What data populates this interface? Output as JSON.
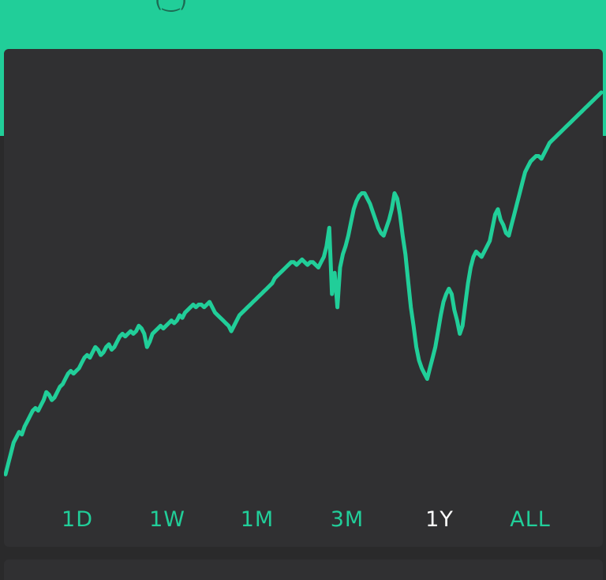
{
  "header": {
    "glyph": "(‿)"
  },
  "colors": {
    "accent": "#21ce99",
    "card": "#303032",
    "background": "#2a2a2b",
    "active_tab": "#ffffff"
  },
  "range_selector": {
    "items": [
      {
        "label": "1D",
        "active": false
      },
      {
        "label": "1W",
        "active": false
      },
      {
        "label": "1M",
        "active": false
      },
      {
        "label": "3M",
        "active": false
      },
      {
        "label": "1Y",
        "active": true
      },
      {
        "label": "ALL",
        "active": false
      }
    ]
  },
  "chart_data": {
    "type": "line",
    "title": "",
    "xlabel": "",
    "ylabel": "",
    "grid": false,
    "series": [
      {
        "values": [
          2,
          6,
          10,
          14,
          16,
          18,
          17,
          20,
          22,
          24,
          26,
          27,
          26,
          28,
          30,
          33,
          32,
          30,
          31,
          33,
          35,
          36,
          38,
          40,
          41,
          40,
          41,
          42,
          44,
          46,
          47,
          46,
          48,
          50,
          49,
          47,
          48,
          50,
          51,
          49,
          50,
          52,
          54,
          55,
          54,
          55,
          56,
          55,
          56,
          58,
          57,
          55,
          50,
          52,
          55,
          56,
          57,
          58,
          57,
          58,
          59,
          60,
          59,
          60,
          62,
          61,
          63,
          64,
          65,
          66,
          65,
          66,
          66,
          65,
          66,
          67,
          65,
          63,
          62,
          61,
          60,
          59,
          58,
          56,
          58,
          60,
          62,
          63,
          64,
          65,
          66,
          67,
          68,
          69,
          70,
          71,
          72,
          73,
          74,
          76,
          77,
          78,
          79,
          80,
          81,
          82,
          82,
          81,
          82,
          83,
          82,
          81,
          82,
          82,
          81,
          80,
          82,
          84,
          88,
          95,
          70,
          78,
          65,
          80,
          85,
          88,
          92,
          97,
          102,
          105,
          107,
          108,
          108,
          106,
          104,
          101,
          98,
          95,
          93,
          92,
          95,
          98,
          102,
          108,
          106,
          100,
          92,
          85,
          75,
          65,
          58,
          50,
          45,
          42,
          40,
          38,
          42,
          46,
          50,
          56,
          62,
          67,
          70,
          72,
          70,
          64,
          60,
          55,
          58,
          66,
          74,
          80,
          84,
          86,
          85,
          84,
          86,
          88,
          90,
          95,
          100,
          102,
          98,
          96,
          93,
          92,
          96,
          100,
          104,
          108,
          112,
          116,
          118,
          120,
          121,
          122,
          122,
          121,
          123,
          125,
          127,
          128,
          129,
          130,
          131,
          132,
          133,
          134,
          135,
          136,
          137,
          138,
          139,
          140,
          141,
          142,
          143,
          144,
          145,
          146
        ]
      }
    ],
    "ylim": [
      0,
      146
    ]
  }
}
